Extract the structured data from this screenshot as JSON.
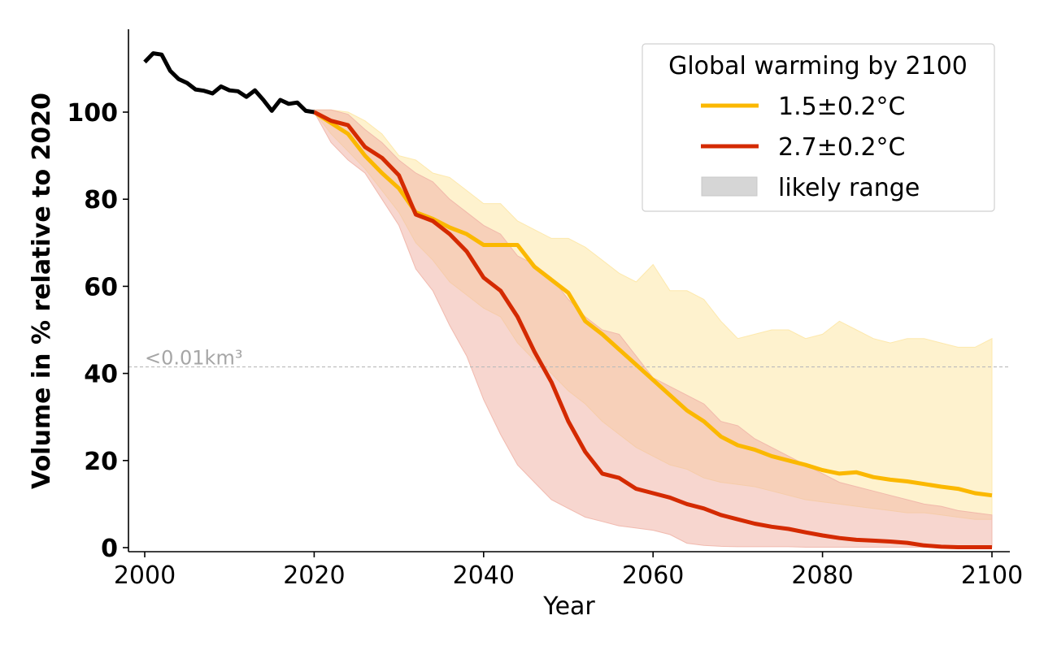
{
  "chart_data": {
    "type": "line",
    "title": "",
    "xlabel": "Year",
    "ylabel": "Volume in % relative to 2020",
    "xlim": [
      1998,
      2102
    ],
    "ylim": [
      -1,
      119
    ],
    "xticks": [
      2000,
      2020,
      2040,
      2060,
      2080,
      2100
    ],
    "yticks": [
      0,
      20,
      40,
      60,
      80,
      100
    ],
    "grid": false,
    "legend": {
      "title": "Global warming by 2100",
      "position": "top-right",
      "entries": [
        {
          "label": "1.5±0.2°C",
          "kind": "line",
          "color": "#fbb800"
        },
        {
          "label": "2.7±0.2°C",
          "kind": "line",
          "color": "#d42a00"
        },
        {
          "label": "likely range",
          "kind": "patch",
          "color": "#d6d6d6"
        }
      ]
    },
    "annotations": [
      {
        "type": "hline",
        "y": 41.5,
        "style": "dashed",
        "color": "#bbbbbb",
        "label": "<0.01km³"
      }
    ],
    "historical": {
      "name": "observed",
      "color": "#000000",
      "x": [
        2000,
        2001,
        2002,
        2003,
        2004,
        2005,
        2006,
        2007,
        2008,
        2009,
        2010,
        2011,
        2012,
        2013,
        2014,
        2015,
        2016,
        2017,
        2018,
        2019,
        2020
      ],
      "y": [
        111.5,
        113.5,
        113.2,
        109.5,
        107.6,
        106.7,
        105.2,
        104.9,
        104.3,
        105.9,
        105,
        104.8,
        103.5,
        105,
        102.8,
        100.3,
        102.8,
        101.9,
        102.2,
        100.3,
        100
      ]
    },
    "series": [
      {
        "name": "1.5±0.2°C",
        "color": "#fbb800",
        "band_color": "#fde7a6",
        "x": [
          2020,
          2022,
          2024,
          2026,
          2028,
          2030,
          2032,
          2034,
          2036,
          2038,
          2040,
          2042,
          2044,
          2046,
          2048,
          2050,
          2052,
          2054,
          2056,
          2058,
          2060,
          2062,
          2064,
          2066,
          2068,
          2070,
          2072,
          2074,
          2076,
          2078,
          2080,
          2082,
          2084,
          2086,
          2088,
          2090,
          2092,
          2094,
          2096,
          2098,
          2100
        ],
        "mean": [
          100,
          97.5,
          95,
          90,
          86,
          82.5,
          77,
          75.5,
          73.5,
          72,
          69.5,
          69.5,
          69.5,
          64.5,
          61.5,
          58.5,
          52,
          49,
          45.5,
          42,
          38.5,
          35,
          31.5,
          29,
          25.5,
          23.5,
          22.5,
          21,
          20,
          19,
          17.8,
          17,
          17.3,
          16.2,
          15.6,
          15.2,
          14.6,
          14,
          13.5,
          12.5,
          12
        ],
        "upper": [
          100.5,
          100.5,
          100,
          98,
          95,
          90,
          89,
          86,
          85,
          82,
          79,
          79,
          75,
          73,
          71,
          71,
          69,
          66,
          63,
          61,
          65,
          59,
          59,
          57,
          52,
          48,
          49,
          50,
          50,
          48,
          49,
          52,
          50,
          48,
          47,
          48,
          48,
          47,
          46,
          46,
          48
        ],
        "lower": [
          100,
          95,
          91,
          87,
          82,
          77,
          70,
          66,
          61,
          58,
          55,
          53,
          47,
          43,
          40,
          36,
          33,
          29,
          26,
          23,
          21,
          19,
          18,
          16,
          15,
          14.5,
          14,
          13,
          12,
          11,
          10.5,
          10,
          9.5,
          9,
          8.5,
          8,
          8,
          7.5,
          7,
          6.5,
          6.5
        ]
      },
      {
        "name": "2.7±0.2°C",
        "color": "#d42a00",
        "band_color": "#f0b5a8",
        "x": [
          2020,
          2022,
          2024,
          2026,
          2028,
          2030,
          2032,
          2034,
          2036,
          2038,
          2040,
          2042,
          2044,
          2046,
          2048,
          2050,
          2052,
          2054,
          2056,
          2058,
          2060,
          2062,
          2064,
          2066,
          2068,
          2070,
          2072,
          2074,
          2076,
          2078,
          2080,
          2082,
          2084,
          2086,
          2088,
          2090,
          2092,
          2094,
          2096,
          2098,
          2100
        ],
        "mean": [
          100,
          98,
          97,
          92,
          89.5,
          85.5,
          76.5,
          75,
          72,
          68,
          62,
          59,
          53,
          45,
          38,
          29,
          22,
          17,
          16,
          13.5,
          12.5,
          11.5,
          10,
          9,
          7.5,
          6.5,
          5.5,
          4.8,
          4.3,
          3.5,
          2.8,
          2.2,
          1.8,
          1.6,
          1.4,
          1.1,
          0.5,
          0.2,
          0.1,
          0.1,
          0.1
        ],
        "upper": [
          100.5,
          100.5,
          99.5,
          96,
          93,
          89,
          86,
          84,
          80,
          77,
          74,
          72,
          67,
          65,
          62,
          57,
          53,
          50,
          49,
          44,
          39,
          37,
          35,
          33,
          29,
          28,
          25,
          23,
          21,
          19,
          17,
          15,
          14,
          13,
          12,
          11,
          10,
          9.5,
          8.5,
          8,
          7.5
        ],
        "lower": [
          100,
          93,
          89,
          86,
          80,
          74,
          64,
          59,
          51,
          44,
          34,
          26,
          19,
          15,
          11,
          9,
          7,
          6,
          5,
          4.5,
          4,
          3,
          1,
          0.5,
          0.3,
          0.2,
          0.2,
          0.2,
          0.2,
          0.1,
          0.1,
          0.1,
          0.1,
          0.1,
          0.1,
          0.1,
          0.1,
          0.1,
          0.1,
          0.1,
          0.1
        ]
      }
    ]
  }
}
